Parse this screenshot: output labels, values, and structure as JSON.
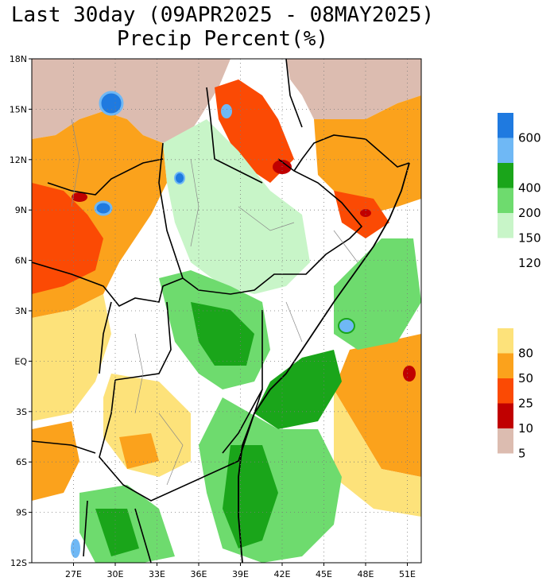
{
  "title": {
    "line1": "Last 30day (09APR2025 - 08MAY2025)",
    "line2": "Precip Percent(%)"
  },
  "map": {
    "region": "East Africa",
    "lat_ticks": [
      "18N",
      "15N",
      "12N",
      "9N",
      "6N",
      "3N",
      "EQ",
      "3S",
      "6S",
      "9S",
      "12S"
    ],
    "lon_ticks": [
      "27E",
      "30E",
      "33E",
      "36E",
      "39E",
      "42E",
      "45E",
      "48E",
      "51E"
    ],
    "lat_range": [
      -12,
      18
    ],
    "lon_range": [
      24,
      52
    ],
    "ocean_color": "#ffffff",
    "grid": "dotted"
  },
  "legend": {
    "upper_group": [
      {
        "label": "600",
        "color": "#1f7ae0"
      },
      {
        "label": "",
        "color": "#6fb8f5"
      },
      {
        "label": "400",
        "color": "#1aa51a"
      },
      {
        "label": "200",
        "color": "#6edb6e"
      },
      {
        "label": "150",
        "color": "#c8f5c8"
      },
      {
        "label": "120",
        "color": ""
      }
    ],
    "lower_group": [
      {
        "label": "80",
        "color": "#fde27a"
      },
      {
        "label": "50",
        "color": "#fba21c"
      },
      {
        "label": "25",
        "color": "#fb4a04"
      },
      {
        "label": "10",
        "color": "#c00000"
      },
      {
        "label": "5",
        "color": "#dcbcb0"
      }
    ]
  },
  "colors": {
    "dry_desert": "#dcbcb0",
    "very_low": "#c00000",
    "low": "#fb4a04",
    "below": "#fba21c",
    "near_below": "#fde27a",
    "near_normal": "#ffffff",
    "above": "#c8f5c8",
    "high": "#6edb6e",
    "very_high": "#1aa51a",
    "extreme": "#6fb8f5",
    "max": "#1f7ae0",
    "border": "#000000",
    "admin": "#8a8a8a"
  }
}
